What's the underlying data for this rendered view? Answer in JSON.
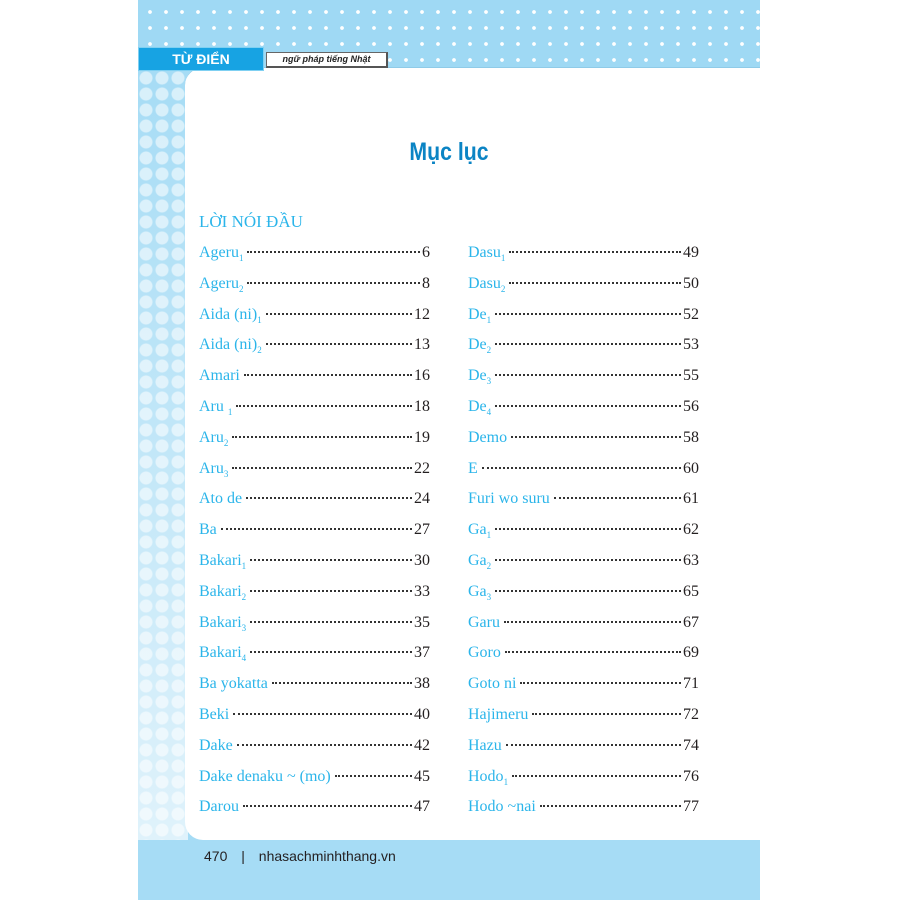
{
  "header": {
    "tag": "TỪ ĐIỂN",
    "subtitle": "ngữ pháp tiếng Nhật"
  },
  "title": "Mục lục",
  "intro": "LỜI NÓI ĐẦU",
  "left": [
    {
      "name": "Ageru",
      "sub": "1",
      "page": "6"
    },
    {
      "name": "Ageru",
      "sub": "2",
      "page": "8"
    },
    {
      "name": "Aida (ni)",
      "sub": "1",
      "page": "12"
    },
    {
      "name": "Aida (ni)",
      "sub": "2",
      "page": "13"
    },
    {
      "name": "Amari",
      "sub": "",
      "page": "16"
    },
    {
      "name": "Aru ",
      "sub": "1",
      "page": "18"
    },
    {
      "name": "Aru",
      "sub": "2",
      "page": "19"
    },
    {
      "name": "Aru",
      "sub": "3",
      "page": "22"
    },
    {
      "name": "Ato de",
      "sub": "",
      "page": "24"
    },
    {
      "name": "Ba",
      "sub": "",
      "page": "27"
    },
    {
      "name": "Bakari",
      "sub": "1",
      "page": "30"
    },
    {
      "name": "Bakari",
      "sub": "2",
      "page": "33"
    },
    {
      "name": "Bakari",
      "sub": "3",
      "page": "35"
    },
    {
      "name": "Bakari",
      "sub": "4",
      "page": "37"
    },
    {
      "name": "Ba yokatta",
      "sub": "",
      "page": "38"
    },
    {
      "name": "Beki",
      "sub": "",
      "page": "40"
    },
    {
      "name": "Dake",
      "sub": "",
      "page": "42"
    },
    {
      "name": "Dake denaku ~ (mo)",
      "sub": "",
      "page": "45"
    },
    {
      "name": "Darou",
      "sub": "",
      "page": "47"
    }
  ],
  "right": [
    {
      "name": "Dasu",
      "sub": "1",
      "page": "49"
    },
    {
      "name": "Dasu",
      "sub": "2",
      "page": "50"
    },
    {
      "name": "De",
      "sub": "1",
      "page": "52"
    },
    {
      "name": "De",
      "sub": "2",
      "page": "53"
    },
    {
      "name": "De",
      "sub": "3",
      "page": "55"
    },
    {
      "name": "De",
      "sub": "4",
      "page": "56"
    },
    {
      "name": "Demo",
      "sub": "",
      "page": "58"
    },
    {
      "name": "E",
      "sub": "",
      "page": "60"
    },
    {
      "name": "Furi wo suru",
      "sub": "",
      "page": "61"
    },
    {
      "name": "Ga",
      "sub": "1",
      "page": "62"
    },
    {
      "name": "Ga",
      "sub": "2",
      "page": "63"
    },
    {
      "name": "Ga",
      "sub": "3",
      "page": "65"
    },
    {
      "name": "Garu",
      "sub": "",
      "page": "67"
    },
    {
      "name": "Goro",
      "sub": "",
      "page": "69"
    },
    {
      "name": "Goto ni",
      "sub": "",
      "page": "71"
    },
    {
      "name": "Hajimeru",
      "sub": "",
      "page": "72"
    },
    {
      "name": "Hazu",
      "sub": "",
      "page": "74"
    },
    {
      "name": "Hodo",
      "sub": "1",
      "page": "76"
    },
    {
      "name": "Hodo ~nai",
      "sub": "",
      "page": "77"
    }
  ],
  "footer": {
    "page_number": "470",
    "separator": "|",
    "site": "nhasachminhthang.vn"
  },
  "colors": {
    "accent": "#2bb5ea",
    "title": "#0b84c4",
    "band": "#a6dcf5"
  }
}
